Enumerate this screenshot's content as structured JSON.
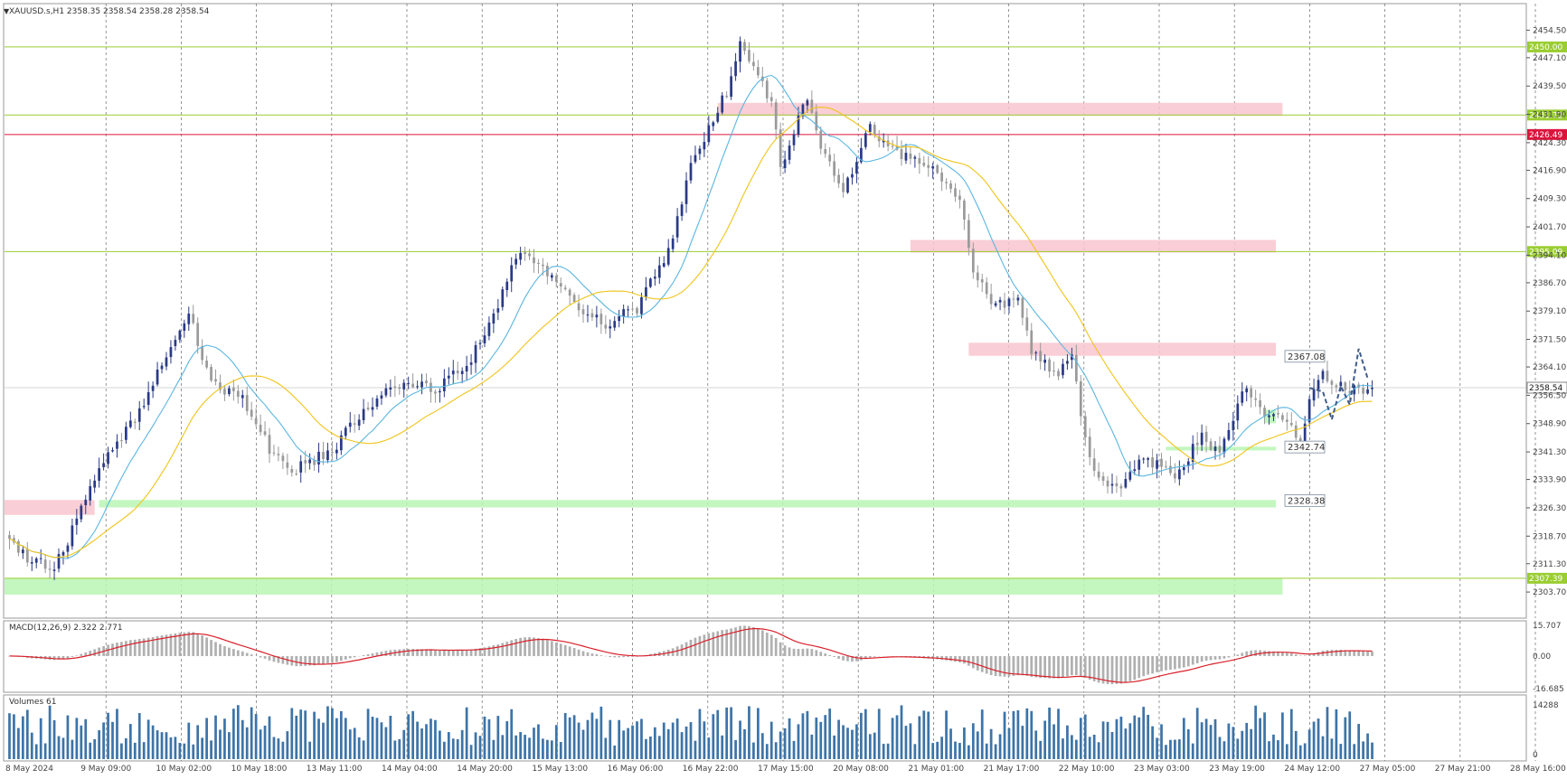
{
  "chart_title": "XAUUSD.s,H1  2358.35 2358.54 2358.28 2358.54",
  "chart_data": {
    "type": "candlestick",
    "instrument": "XAUUSD.s",
    "timeframe": "H1",
    "ohlc_header": [
      2358.35,
      2358.54,
      2358.28,
      2358.54
    ],
    "last_price": "2358.54",
    "y_range": [
      2299.6,
      2459.2
    ],
    "y_ticks": [
      "2454.50",
      "2447.10",
      "2439.50",
      "2431.90",
      "2424.30",
      "2416.90",
      "2409.30",
      "2401.70",
      "2394.10",
      "2386.70",
      "2379.10",
      "2371.50",
      "2364.10",
      "2356.50",
      "2348.90",
      "2341.30",
      "2333.90",
      "2326.30",
      "2318.70",
      "2311.30",
      "2303.70"
    ],
    "x_labels": [
      "8 May 2024",
      "9 May 09:00",
      "10 May 02:00",
      "10 May 18:00",
      "13 May 11:00",
      "14 May 04:00",
      "14 May 20:00",
      "15 May 13:00",
      "16 May 06:00",
      "16 May 22:00",
      "17 May 15:00",
      "20 May 08:00",
      "21 May 01:00",
      "21 May 17:00",
      "22 May 10:00",
      "23 May 03:00",
      "23 May 19:00",
      "24 May 12:00",
      "27 May 05:00",
      "27 May 21:00",
      "28 May 16:00"
    ],
    "key_points": [
      [
        0,
        2318
      ],
      [
        5,
        2312
      ],
      [
        10,
        2310
      ],
      [
        14,
        2320
      ],
      [
        20,
        2338
      ],
      [
        28,
        2350
      ],
      [
        35,
        2368
      ],
      [
        40,
        2378
      ],
      [
        45,
        2360
      ],
      [
        52,
        2356
      ],
      [
        58,
        2342
      ],
      [
        63,
        2336
      ],
      [
        72,
        2342
      ],
      [
        82,
        2356
      ],
      [
        88,
        2360
      ],
      [
        95,
        2358
      ],
      [
        103,
        2366
      ],
      [
        110,
        2384
      ],
      [
        114,
        2396
      ],
      [
        122,
        2388
      ],
      [
        127,
        2380
      ],
      [
        133,
        2376
      ],
      [
        140,
        2380
      ],
      [
        147,
        2395
      ],
      [
        152,
        2418
      ],
      [
        160,
        2438
      ],
      [
        163,
        2452
      ],
      [
        170,
        2435
      ],
      [
        172,
        2418
      ],
      [
        178,
        2436
      ],
      [
        182,
        2420
      ],
      [
        186,
        2412
      ],
      [
        192,
        2428
      ],
      [
        198,
        2422
      ],
      [
        205,
        2418
      ],
      [
        212,
        2410
      ],
      [
        215,
        2390
      ],
      [
        220,
        2380
      ],
      [
        225,
        2383
      ],
      [
        228,
        2368
      ],
      [
        234,
        2362
      ],
      [
        237,
        2366
      ],
      [
        240,
        2345
      ],
      [
        243,
        2334
      ],
      [
        248,
        2332
      ],
      [
        252,
        2340
      ],
      [
        256,
        2338
      ],
      [
        260,
        2334
      ],
      [
        266,
        2346
      ],
      [
        270,
        2340
      ],
      [
        275,
        2358
      ],
      [
        280,
        2352
      ],
      [
        285,
        2350
      ],
      [
        288,
        2342
      ],
      [
        290,
        2356
      ],
      [
        293,
        2362
      ],
      [
        299,
        2358
      ],
      [
        304,
        2358.54
      ]
    ],
    "n_candles": 305,
    "sma_fast_label": "moving average (fast)",
    "sma_slow_label": "moving average (slow)",
    "horizontal_levels": [
      {
        "value": 2450.0,
        "label": "2450.00",
        "color": "#9acd32"
      },
      {
        "value": 2431.72,
        "label": "2431.72",
        "color": "#9acd32"
      },
      {
        "value": 2426.49,
        "label": "2426.49",
        "color": "#dc143c"
      },
      {
        "value": 2395.09,
        "label": "2395.09",
        "color": "#9acd32"
      },
      {
        "value": 2307.39,
        "label": "2307.39",
        "color": "#9acd32"
      }
    ],
    "price_boxes": [
      {
        "label": "2367.08",
        "value": 2367.08
      },
      {
        "label": "2342.74",
        "value": 2342.74
      },
      {
        "label": "2328.38",
        "value": 2328.38
      }
    ],
    "zones": [
      {
        "kind": "resistance",
        "from_i": 158,
        "to_i": 284,
        "low": 2431.5,
        "high": 2435.0,
        "color": "#f9c6cf"
      },
      {
        "kind": "resistance",
        "from_i": 201,
        "to_i": 305,
        "low": 2394.8,
        "high": 2398.2,
        "color": "#f9c6cf"
      },
      {
        "kind": "resistance",
        "from_i": 214,
        "to_i": 305,
        "low": 2367.1,
        "high": 2370.6,
        "color": "#f9c6cf"
      },
      {
        "kind": "resistance",
        "from_i": 0,
        "to_i": 19,
        "low": 2324.4,
        "high": 2328.4,
        "color": "#f9c6cf"
      },
      {
        "kind": "support",
        "from_i": 20,
        "to_i": 305,
        "low": 2326.4,
        "high": 2328.4,
        "color": "#b9f6b4"
      },
      {
        "kind": "support",
        "from_i": 258,
        "to_i": 305,
        "low": 2341.7,
        "high": 2342.7,
        "color": "#b9f6b4"
      },
      {
        "kind": "support",
        "from_i": 280,
        "to_i": 305,
        "low": 2349.0,
        "high": 2352.6,
        "color": "#b9f6b4"
      },
      {
        "kind": "support",
        "from_i": 0,
        "to_i": 284,
        "low": 2303.0,
        "high": 2307.4,
        "color": "#b9f6b4"
      }
    ],
    "forecast_path": [
      [
        290,
        2358.5
      ],
      [
        293,
        2357.5
      ],
      [
        295,
        2350
      ],
      [
        297,
        2359
      ],
      [
        299,
        2354
      ],
      [
        301,
        2369
      ],
      [
        303,
        2361
      ]
    ],
    "macd": {
      "label": "MACD(12,26,9) 2.322 2.771",
      "y_ticks": [
        "15.707",
        "0.00",
        "-16.685"
      ],
      "y_range": [
        -16.685,
        15.707
      ]
    },
    "volumes": {
      "label": "Volumes 61",
      "y_ticks": [
        "14288",
        "0"
      ],
      "max": 14288
    }
  },
  "colors": {
    "bg": "#ffffff",
    "grid": "#6b6b6b",
    "bull": "#2a3a86",
    "bear": "#9a9a9a",
    "sma_fast": "#5bb6e0",
    "sma_slow": "#f0c419",
    "macd_hist": "#b0b0b0",
    "macd_signal": "#d9202a",
    "volume": "#3d74a8",
    "forecast": "#3f5c8a"
  }
}
